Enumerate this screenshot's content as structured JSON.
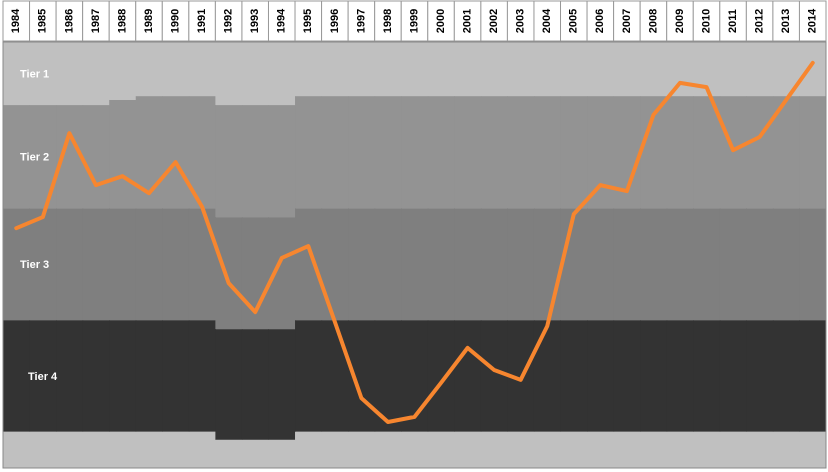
{
  "chart_data": {
    "type": "line",
    "x": [
      1984,
      1985,
      1986,
      1987,
      1988,
      1989,
      1990,
      1991,
      1992,
      1993,
      1994,
      1995,
      1996,
      1997,
      1998,
      1999,
      2000,
      2001,
      2002,
      2003,
      2004,
      2005,
      2006,
      2007,
      2008,
      2009,
      2010,
      2011,
      2012,
      2013,
      2014
    ],
    "ylim": [
      0,
      100
    ],
    "y_inverted": true,
    "bands": [
      {
        "name": "Tier 1",
        "color": "#c0c0c0",
        "bottom": [
          14.8,
          14.8,
          14.8,
          14.8,
          13.6,
          12.7,
          12.7,
          12.7,
          14.8,
          14.8,
          14.8,
          12.7,
          12.7,
          12.7,
          12.7,
          12.7,
          12.7,
          12.7,
          12.7,
          12.7,
          12.7,
          12.7,
          12.7,
          12.7,
          12.7,
          12.7,
          12.7,
          12.7,
          12.7,
          12.7,
          12.7
        ]
      },
      {
        "name": "Tier 2",
        "color": "#939393",
        "bottom": [
          39.0,
          39.0,
          39.0,
          39.0,
          39.0,
          39.0,
          39.0,
          39.0,
          41.1,
          41.1,
          41.1,
          39.0,
          39.0,
          39.0,
          39.0,
          39.0,
          39.0,
          39.0,
          39.0,
          39.0,
          39.0,
          39.0,
          39.0,
          39.0,
          39.0,
          39.0,
          39.0,
          39.0,
          39.0,
          39.0,
          39.0
        ]
      },
      {
        "name": "Tier 3",
        "color": "#7f7f7f",
        "bottom": [
          65.3,
          65.3,
          65.3,
          65.3,
          65.3,
          65.3,
          65.3,
          65.3,
          67.4,
          67.4,
          67.4,
          65.3,
          65.3,
          65.3,
          65.3,
          65.3,
          65.3,
          65.3,
          65.3,
          65.3,
          65.3,
          65.3,
          65.3,
          65.3,
          65.3,
          65.3,
          65.3,
          65.3,
          65.3,
          65.3,
          65.3
        ]
      },
      {
        "name": "Tier 4",
        "color": "#333333",
        "bottom": [
          91.5,
          91.5,
          91.5,
          91.5,
          91.5,
          91.5,
          91.5,
          91.5,
          93.4,
          93.4,
          93.4,
          91.5,
          91.5,
          91.5,
          91.5,
          91.5,
          91.5,
          91.5,
          91.5,
          91.5,
          91.5,
          91.5,
          91.5,
          91.5,
          91.5,
          91.5,
          91.5,
          91.5,
          91.5,
          91.5,
          91.5
        ]
      }
    ],
    "base_color": "#c0c0c0",
    "series": [
      {
        "color": "#f7862f",
        "values": [
          43.7,
          41.1,
          21.4,
          33.6,
          31.5,
          35.5,
          28.2,
          38.7,
          56.6,
          63.4,
          50.7,
          47.9,
          65.7,
          83.6,
          89.2,
          88.0,
          80.0,
          71.8,
          77.0,
          79.3,
          66.7,
          40.4,
          33.6,
          35.0,
          17.1,
          9.6,
          10.6,
          25.4,
          22.3,
          13.6,
          4.9
        ]
      }
    ]
  }
}
